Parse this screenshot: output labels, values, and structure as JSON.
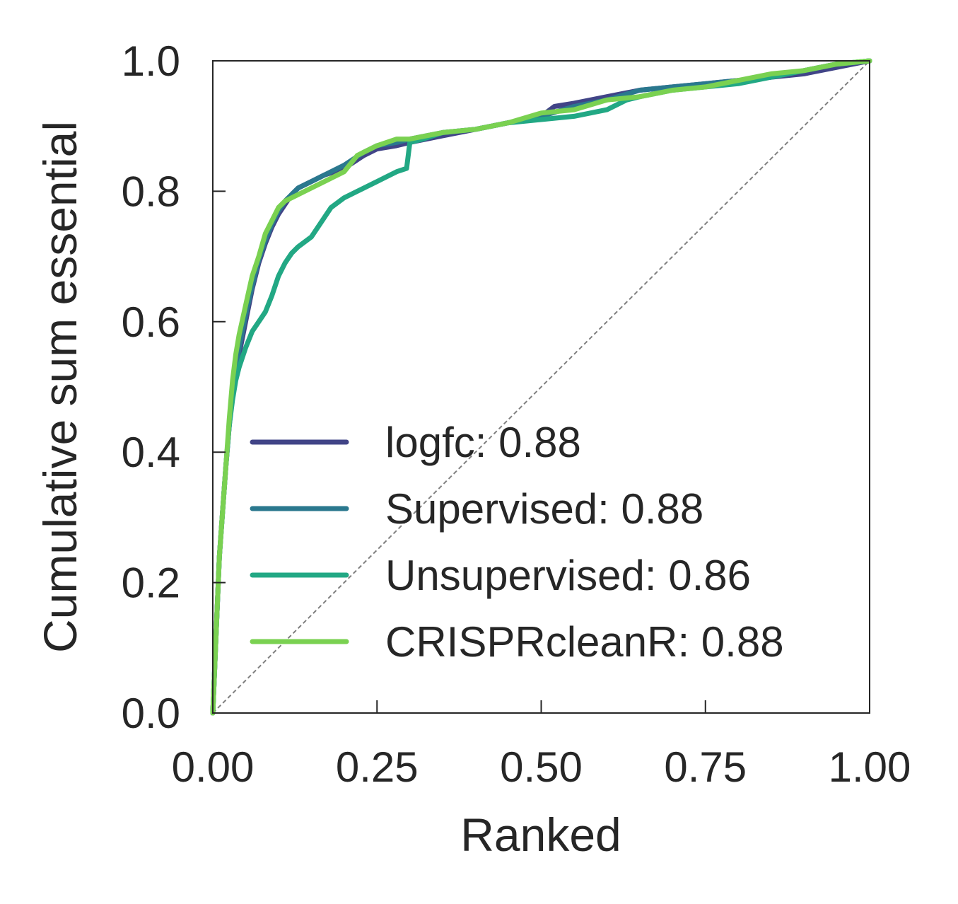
{
  "chart_data": {
    "type": "line",
    "title": "",
    "xlabel": "Ranked",
    "ylabel": "Cumulative sum essential",
    "xlim": [
      0,
      1
    ],
    "ylim": [
      0,
      1
    ],
    "xticks": [
      "0.00",
      "0.25",
      "0.50",
      "0.75",
      "1.00"
    ],
    "yticks": [
      "0.0",
      "0.2",
      "0.4",
      "0.6",
      "0.8",
      "1.0"
    ],
    "grid": false,
    "legend_position": "lower-right",
    "reference_line": {
      "type": "diagonal",
      "style": "dashed",
      "color": "#808080"
    },
    "series": [
      {
        "name": "logfc: 0.88",
        "color": "#414487",
        "points": [
          [
            0,
            0
          ],
          [
            0.005,
            0.12
          ],
          [
            0.01,
            0.24
          ],
          [
            0.015,
            0.31
          ],
          [
            0.02,
            0.38
          ],
          [
            0.025,
            0.44
          ],
          [
            0.03,
            0.49
          ],
          [
            0.035,
            0.52
          ],
          [
            0.04,
            0.55
          ],
          [
            0.05,
            0.6
          ],
          [
            0.06,
            0.65
          ],
          [
            0.07,
            0.69
          ],
          [
            0.08,
            0.72
          ],
          [
            0.09,
            0.745
          ],
          [
            0.1,
            0.765
          ],
          [
            0.11,
            0.78
          ],
          [
            0.12,
            0.795
          ],
          [
            0.13,
            0.805
          ],
          [
            0.15,
            0.815
          ],
          [
            0.17,
            0.825
          ],
          [
            0.2,
            0.835
          ],
          [
            0.23,
            0.855
          ],
          [
            0.25,
            0.865
          ],
          [
            0.28,
            0.87
          ],
          [
            0.3,
            0.875
          ],
          [
            0.35,
            0.885
          ],
          [
            0.4,
            0.895
          ],
          [
            0.45,
            0.905
          ],
          [
            0.5,
            0.915
          ],
          [
            0.52,
            0.93
          ],
          [
            0.55,
            0.935
          ],
          [
            0.6,
            0.945
          ],
          [
            0.65,
            0.955
          ],
          [
            0.7,
            0.96
          ],
          [
            0.75,
            0.965
          ],
          [
            0.8,
            0.97
          ],
          [
            0.85,
            0.975
          ],
          [
            0.9,
            0.98
          ],
          [
            0.95,
            0.99
          ],
          [
            1.0,
            1.0
          ]
        ]
      },
      {
        "name": "Supervised: 0.88",
        "color": "#2A788E",
        "points": [
          [
            0,
            0
          ],
          [
            0.005,
            0.12
          ],
          [
            0.01,
            0.24
          ],
          [
            0.015,
            0.31
          ],
          [
            0.02,
            0.38
          ],
          [
            0.025,
            0.44
          ],
          [
            0.03,
            0.49
          ],
          [
            0.035,
            0.525
          ],
          [
            0.04,
            0.56
          ],
          [
            0.05,
            0.61
          ],
          [
            0.06,
            0.655
          ],
          [
            0.07,
            0.695
          ],
          [
            0.08,
            0.725
          ],
          [
            0.09,
            0.75
          ],
          [
            0.1,
            0.77
          ],
          [
            0.11,
            0.785
          ],
          [
            0.12,
            0.795
          ],
          [
            0.13,
            0.805
          ],
          [
            0.15,
            0.815
          ],
          [
            0.17,
            0.825
          ],
          [
            0.2,
            0.84
          ],
          [
            0.23,
            0.86
          ],
          [
            0.25,
            0.87
          ],
          [
            0.28,
            0.875
          ],
          [
            0.3,
            0.88
          ],
          [
            0.35,
            0.89
          ],
          [
            0.4,
            0.895
          ],
          [
            0.45,
            0.905
          ],
          [
            0.5,
            0.915
          ],
          [
            0.55,
            0.93
          ],
          [
            0.6,
            0.94
          ],
          [
            0.65,
            0.955
          ],
          [
            0.7,
            0.96
          ],
          [
            0.75,
            0.965
          ],
          [
            0.8,
            0.97
          ],
          [
            0.85,
            0.975
          ],
          [
            0.9,
            0.985
          ],
          [
            0.95,
            0.995
          ],
          [
            1.0,
            1.0
          ]
        ]
      },
      {
        "name": "Unsupervised: 0.86",
        "color": "#22A884",
        "points": [
          [
            0,
            0
          ],
          [
            0.005,
            0.12
          ],
          [
            0.01,
            0.24
          ],
          [
            0.015,
            0.31
          ],
          [
            0.02,
            0.38
          ],
          [
            0.025,
            0.44
          ],
          [
            0.03,
            0.48
          ],
          [
            0.035,
            0.51
          ],
          [
            0.04,
            0.53
          ],
          [
            0.05,
            0.56
          ],
          [
            0.06,
            0.585
          ],
          [
            0.07,
            0.6
          ],
          [
            0.08,
            0.615
          ],
          [
            0.09,
            0.64
          ],
          [
            0.1,
            0.67
          ],
          [
            0.11,
            0.69
          ],
          [
            0.12,
            0.705
          ],
          [
            0.13,
            0.715
          ],
          [
            0.15,
            0.73
          ],
          [
            0.17,
            0.76
          ],
          [
            0.18,
            0.775
          ],
          [
            0.2,
            0.79
          ],
          [
            0.22,
            0.8
          ],
          [
            0.25,
            0.815
          ],
          [
            0.28,
            0.83
          ],
          [
            0.295,
            0.835
          ],
          [
            0.3,
            0.875
          ],
          [
            0.32,
            0.88
          ],
          [
            0.35,
            0.89
          ],
          [
            0.4,
            0.895
          ],
          [
            0.45,
            0.905
          ],
          [
            0.5,
            0.91
          ],
          [
            0.55,
            0.915
          ],
          [
            0.6,
            0.925
          ],
          [
            0.63,
            0.94
          ],
          [
            0.65,
            0.945
          ],
          [
            0.7,
            0.955
          ],
          [
            0.75,
            0.96
          ],
          [
            0.8,
            0.965
          ],
          [
            0.85,
            0.975
          ],
          [
            0.9,
            0.985
          ],
          [
            0.95,
            0.995
          ],
          [
            1.0,
            1.0
          ]
        ]
      },
      {
        "name": "CRISPRcleanR: 0.88",
        "color": "#7AD151",
        "points": [
          [
            0,
            0
          ],
          [
            0.005,
            0.12
          ],
          [
            0.01,
            0.24
          ],
          [
            0.015,
            0.31
          ],
          [
            0.02,
            0.38
          ],
          [
            0.025,
            0.45
          ],
          [
            0.03,
            0.51
          ],
          [
            0.035,
            0.55
          ],
          [
            0.04,
            0.58
          ],
          [
            0.05,
            0.625
          ],
          [
            0.06,
            0.67
          ],
          [
            0.07,
            0.7
          ],
          [
            0.08,
            0.735
          ],
          [
            0.09,
            0.755
          ],
          [
            0.1,
            0.775
          ],
          [
            0.11,
            0.785
          ],
          [
            0.12,
            0.79
          ],
          [
            0.14,
            0.8
          ],
          [
            0.17,
            0.815
          ],
          [
            0.2,
            0.83
          ],
          [
            0.22,
            0.855
          ],
          [
            0.25,
            0.87
          ],
          [
            0.28,
            0.88
          ],
          [
            0.3,
            0.88
          ],
          [
            0.35,
            0.89
          ],
          [
            0.4,
            0.895
          ],
          [
            0.45,
            0.905
          ],
          [
            0.5,
            0.92
          ],
          [
            0.55,
            0.925
          ],
          [
            0.6,
            0.94
          ],
          [
            0.65,
            0.945
          ],
          [
            0.7,
            0.955
          ],
          [
            0.75,
            0.96
          ],
          [
            0.8,
            0.97
          ],
          [
            0.85,
            0.98
          ],
          [
            0.9,
            0.985
          ],
          [
            0.95,
            0.995
          ],
          [
            1.0,
            1.0
          ]
        ]
      }
    ]
  }
}
